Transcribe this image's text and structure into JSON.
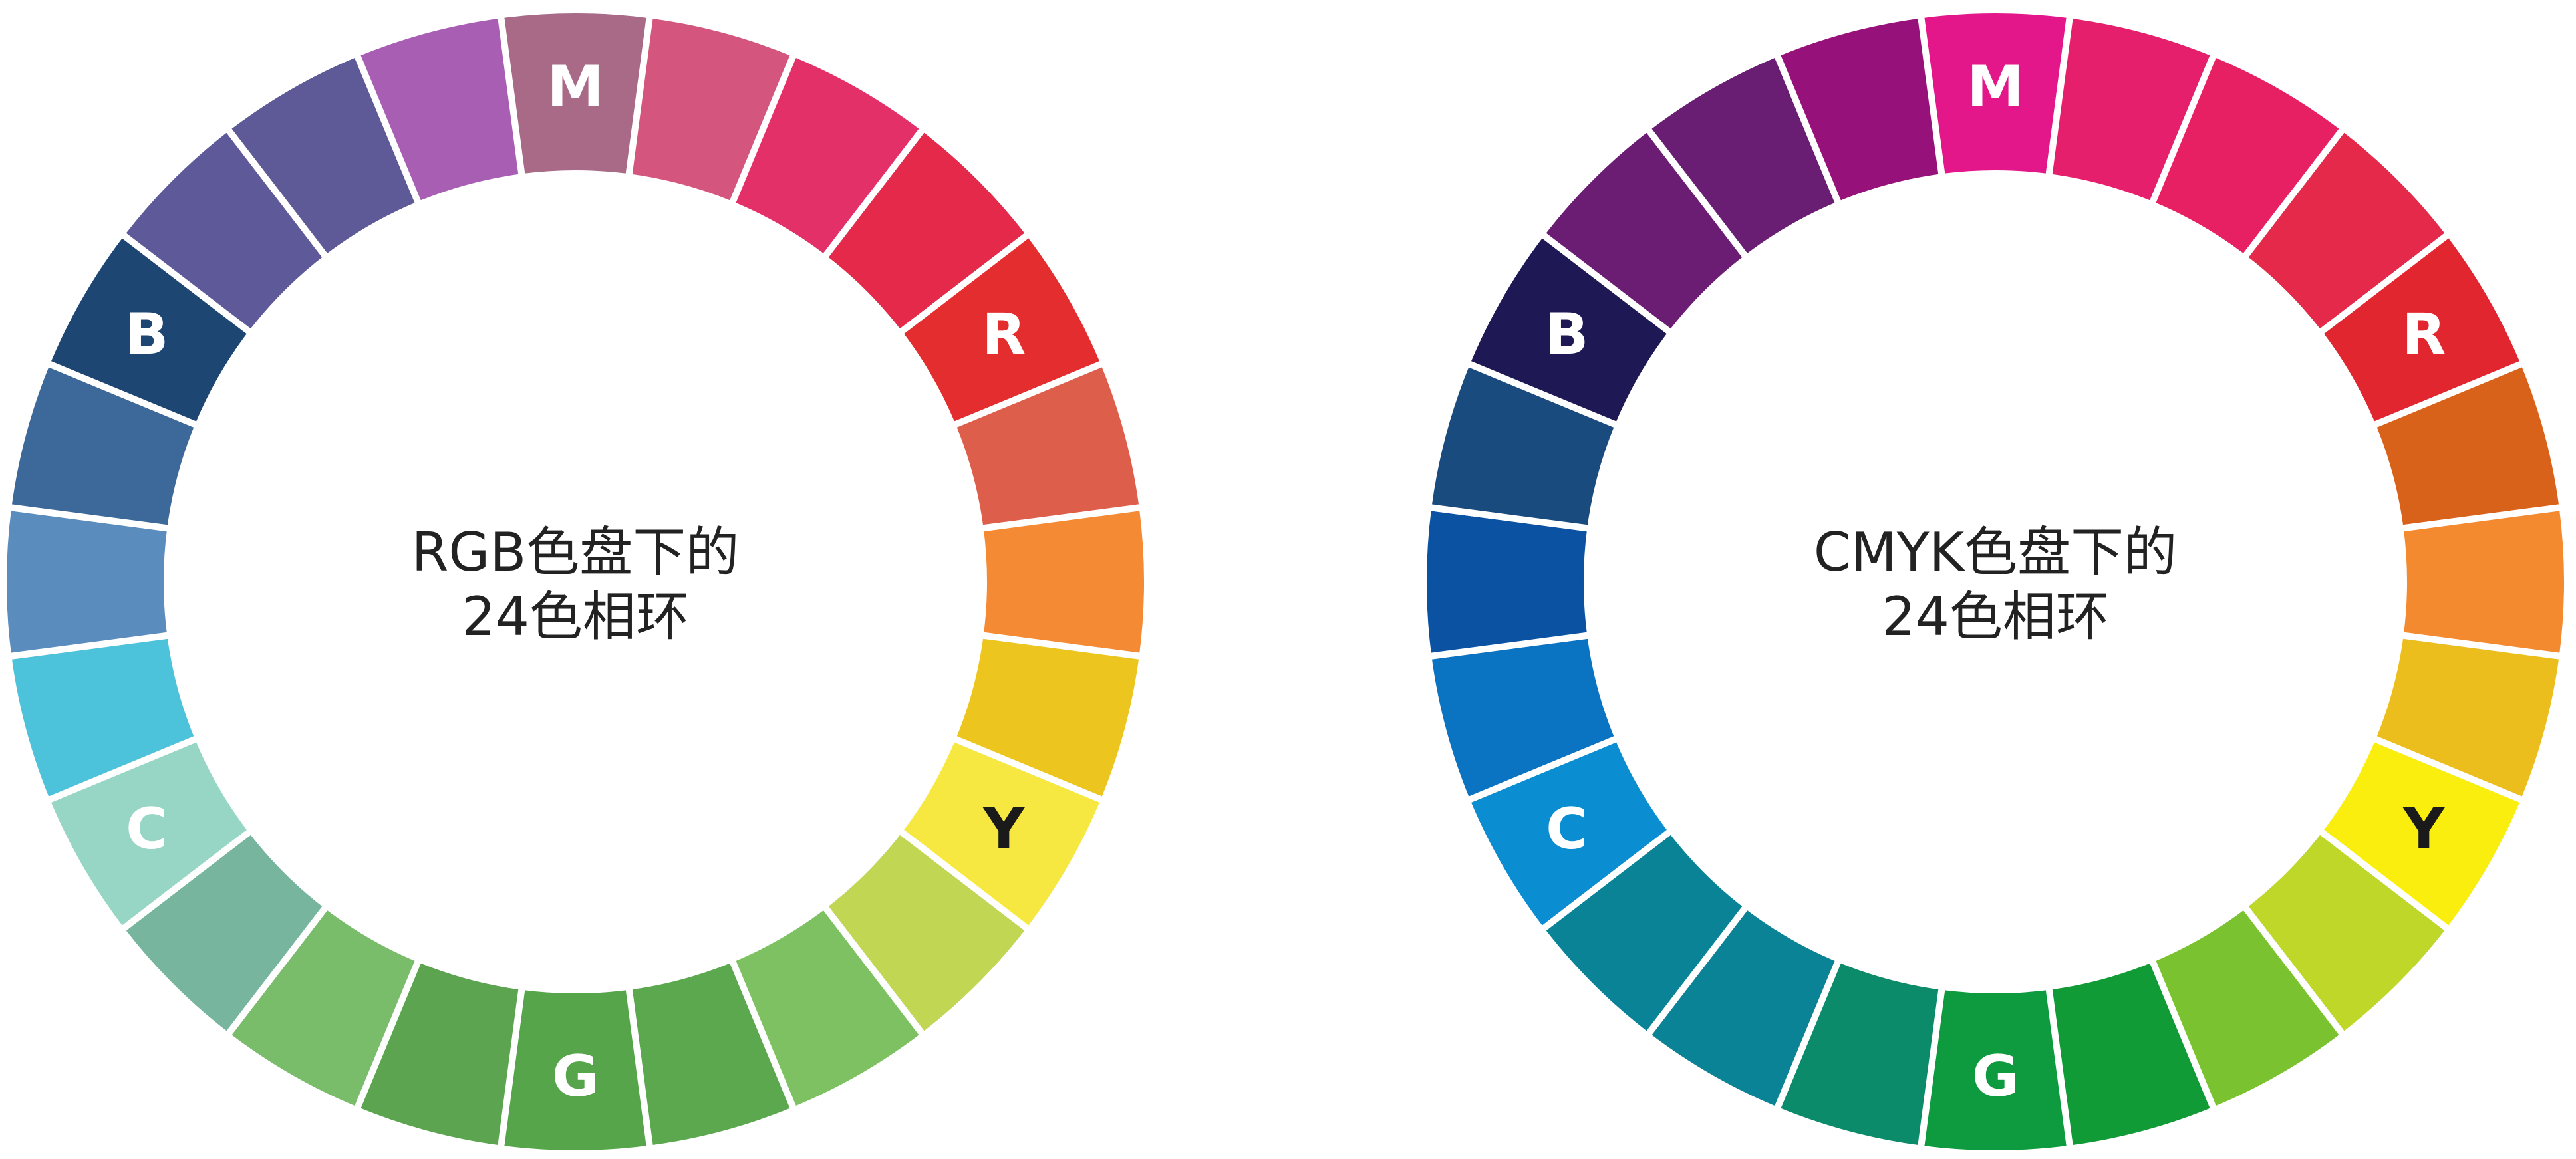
{
  "wheels": [
    {
      "id": "rgb",
      "title_lines": [
        "RGB色盘下的",
        "24色相环"
      ],
      "segments": [
        {
          "color": "#A86A86",
          "label": "M",
          "label_color": "#ffffff"
        },
        {
          "color": "#D4557E",
          "label": "",
          "label_color": "#ffffff"
        },
        {
          "color": "#E33068",
          "label": "",
          "label_color": "#ffffff"
        },
        {
          "color": "#E5294A",
          "label": "",
          "label_color": "#ffffff"
        },
        {
          "color": "#E42D2E",
          "label": "R",
          "label_color": "#ffffff"
        },
        {
          "color": "#DD5E4A",
          "label": "",
          "label_color": "#ffffff"
        },
        {
          "color": "#F48A33",
          "label": "",
          "label_color": "#ffffff"
        },
        {
          "color": "#ECC51F",
          "label": "",
          "label_color": "#ffffff"
        },
        {
          "color": "#F7E841",
          "label": "Y",
          "label_color": "#1a1a1a"
        },
        {
          "color": "#C1D653",
          "label": "",
          "label_color": "#ffffff"
        },
        {
          "color": "#7DC162",
          "label": "",
          "label_color": "#ffffff"
        },
        {
          "color": "#5BA84E",
          "label": "",
          "label_color": "#ffffff"
        },
        {
          "color": "#56A54A",
          "label": "G",
          "label_color": "#ffffff"
        },
        {
          "color": "#5CA450",
          "label": "",
          "label_color": "#ffffff"
        },
        {
          "color": "#79BD6A",
          "label": "",
          "label_color": "#ffffff"
        },
        {
          "color": "#77B59F",
          "label": "",
          "label_color": "#ffffff"
        },
        {
          "color": "#97D6C4",
          "label": "C",
          "label_color": "#ffffff"
        },
        {
          "color": "#4CC3DA",
          "label": "",
          "label_color": "#ffffff"
        },
        {
          "color": "#5A8CBE",
          "label": "",
          "label_color": "#ffffff"
        },
        {
          "color": "#3D689A",
          "label": "",
          "label_color": "#ffffff"
        },
        {
          "color": "#1E4673",
          "label": "B",
          "label_color": "#ffffff"
        },
        {
          "color": "#5E5999",
          "label": "",
          "label_color": "#ffffff"
        },
        {
          "color": "#5E5997",
          "label": "",
          "label_color": "#ffffff"
        },
        {
          "color": "#A85FB3",
          "label": "",
          "label_color": "#ffffff"
        }
      ]
    },
    {
      "id": "cmyk",
      "title_lines": [
        "CMYK色盘下的",
        "24色相环"
      ],
      "segments": [
        {
          "color": "#E3168A",
          "label": "M",
          "label_color": "#ffffff"
        },
        {
          "color": "#E51F6B",
          "label": "",
          "label_color": "#ffffff"
        },
        {
          "color": "#E72064",
          "label": "",
          "label_color": "#ffffff"
        },
        {
          "color": "#E5294A",
          "label": "",
          "label_color": "#ffffff"
        },
        {
          "color": "#E1262F",
          "label": "R",
          "label_color": "#ffffff"
        },
        {
          "color": "#D9621A",
          "label": "",
          "label_color": "#ffffff"
        },
        {
          "color": "#F38A2F",
          "label": "",
          "label_color": "#ffffff"
        },
        {
          "color": "#ECBE1D",
          "label": "",
          "label_color": "#ffffff"
        },
        {
          "color": "#F9EE0D",
          "label": "Y",
          "label_color": "#1a1a1a"
        },
        {
          "color": "#BED728",
          "label": "",
          "label_color": "#ffffff"
        },
        {
          "color": "#7BC231",
          "label": "",
          "label_color": "#ffffff"
        },
        {
          "color": "#109B36",
          "label": "",
          "label_color": "#ffffff"
        },
        {
          "color": "#0E9A3E",
          "label": "G",
          "label_color": "#ffffff"
        },
        {
          "color": "#0C8B6A",
          "label": "",
          "label_color": "#ffffff"
        },
        {
          "color": "#0B8396",
          "label": "",
          "label_color": "#ffffff"
        },
        {
          "color": "#0A8397",
          "label": "",
          "label_color": "#ffffff"
        },
        {
          "color": "#0B8DD1",
          "label": "C",
          "label_color": "#ffffff"
        },
        {
          "color": "#0A74C3",
          "label": "",
          "label_color": "#ffffff"
        },
        {
          "color": "#0B53A2",
          "label": "",
          "label_color": "#ffffff"
        },
        {
          "color": "#194B7E",
          "label": "",
          "label_color": "#ffffff"
        },
        {
          "color": "#1E1855",
          "label": "B",
          "label_color": "#ffffff"
        },
        {
          "color": "#6B1D73",
          "label": "",
          "label_color": "#ffffff"
        },
        {
          "color": "#691E73",
          "label": "",
          "label_color": "#ffffff"
        },
        {
          "color": "#96127A",
          "label": "",
          "label_color": "#ffffff"
        }
      ]
    }
  ]
}
